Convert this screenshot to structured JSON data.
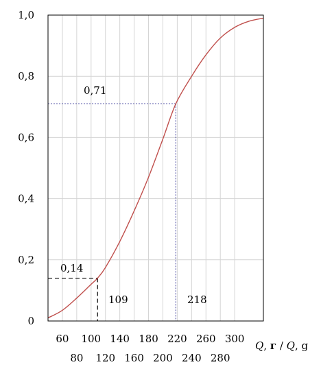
{
  "chart_data": {
    "type": "line",
    "title": "",
    "xlabel": "Q, г / Q, g",
    "ylabel": "",
    "xlim": [
      40,
      340
    ],
    "ylim": [
      0,
      1.0
    ],
    "grid": true,
    "y_ticks": [
      "0",
      "0,2",
      "0,4",
      "0,6",
      "0,8",
      "1,0"
    ],
    "x_ticks_row1": [
      "60",
      "100",
      "140",
      "180",
      "220",
      "260",
      "300"
    ],
    "x_ticks_row2": [
      "80",
      "120",
      "160",
      "200",
      "240",
      "280"
    ],
    "series": [
      {
        "color": "#c0504d",
        "x": [
          40,
          60,
          80,
          100,
          109,
          120,
          140,
          160,
          180,
          200,
          218,
          240,
          260,
          280,
          300,
          320,
          340
        ],
        "y": [
          0.01,
          0.035,
          0.075,
          0.12,
          0.14,
          0.175,
          0.26,
          0.36,
          0.47,
          0.595,
          0.71,
          0.8,
          0.87,
          0.925,
          0.96,
          0.98,
          0.99
        ]
      }
    ],
    "annotations": [
      {
        "label": "0,71",
        "x": 218,
        "y": 0.71,
        "style": "dotted"
      },
      {
        "label": "218",
        "x": 218,
        "y": 0.71,
        "style": "dotted"
      },
      {
        "label": "0,14",
        "x": 109,
        "y": 0.14,
        "style": "dashed"
      },
      {
        "label": "109",
        "x": 109,
        "y": 0.14,
        "style": "dashed"
      }
    ]
  }
}
